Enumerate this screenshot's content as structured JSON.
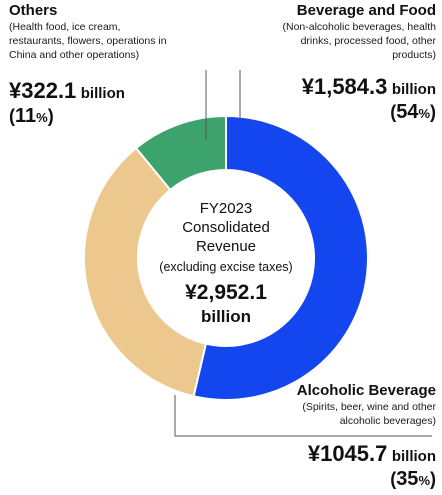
{
  "chart_data": {
    "type": "pie",
    "categories": [
      "Beverage and Food",
      "Alcoholic Beverage",
      "Others"
    ],
    "values": [
      1584.3,
      1045.7,
      322.1
    ],
    "percent": [
      54,
      35,
      11
    ],
    "colors": [
      "#1446f0",
      "#ecc88e",
      "#3da36c"
    ],
    "center": {
      "line1": "FY2023",
      "line2": "Consolidated",
      "line3": "Revenue",
      "line4": "(excluding excise taxes)",
      "total": "¥2,952.1",
      "unit": "billion"
    }
  },
  "segments": {
    "beverage": {
      "title": "Beverage and Food",
      "sub1": "(Non-alcoholic beverages, health",
      "sub2": "drinks, processed food, other",
      "sub3": "products)",
      "amount": "¥1,584.3",
      "unit": "billion",
      "pct_open": "(",
      "pct_num": "54",
      "pct_sym": "%",
      "pct_close": ")"
    },
    "alcoholic": {
      "title": "Alcoholic Beverage",
      "sub1": "(Spirits, beer, wine and other",
      "sub2": "alcoholic beverages)",
      "amount": "¥1045.7",
      "unit": "billion",
      "pct_open": "(",
      "pct_num": "35",
      "pct_sym": "%",
      "pct_close": ")"
    },
    "others": {
      "title": "Others",
      "sub1": "(Health food, ice cream,",
      "sub2": "restaurants, flowers, operations in",
      "sub3": "China and other operations)",
      "amount": "¥322.1",
      "unit": "billion",
      "pct_open": "(",
      "pct_num": "11",
      "pct_sym": "%",
      "pct_close": ")"
    }
  },
  "leader_color": "#555555"
}
